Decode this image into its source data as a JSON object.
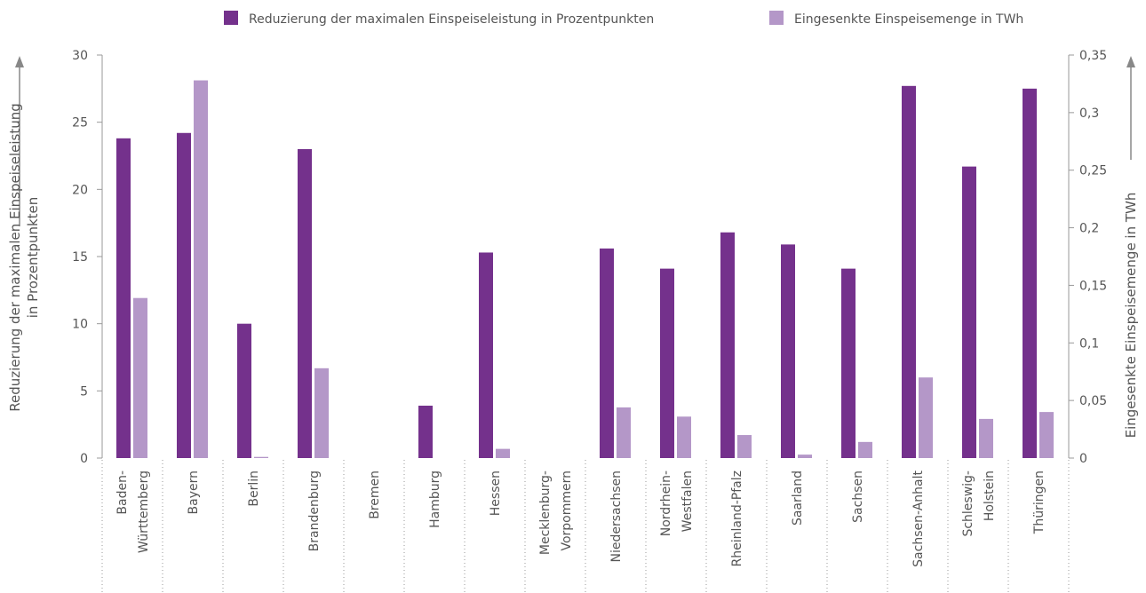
{
  "chart_data": {
    "type": "bar",
    "categories": [
      [
        "Baden-",
        "Württemberg"
      ],
      [
        "Bayern"
      ],
      [
        "Berlin"
      ],
      [
        "Brandenburg"
      ],
      [
        "Bremen"
      ],
      [
        "Hamburg"
      ],
      [
        "Hessen"
      ],
      [
        "Mecklenburg-",
        "Vorpommern"
      ],
      [
        "Niedersachsen"
      ],
      [
        "Nordrhein-",
        "Westfalen"
      ],
      [
        "Rheinland-Pfalz"
      ],
      [
        "Saarland"
      ],
      [
        "Sachsen"
      ],
      [
        "Sachsen-Anhalt"
      ],
      [
        "Schleswig-",
        "Holstein"
      ],
      [
        "Thüringen"
      ]
    ],
    "series": [
      {
        "name": "Reduzierung der maximalen Einspeiseleistung in Prozentpunkten",
        "color": "#74318c",
        "axis": "y",
        "values": [
          23.8,
          24.2,
          10,
          23,
          0,
          3.9,
          15.3,
          0,
          15.6,
          14.1,
          16.8,
          15.9,
          14.1,
          27.7,
          21.7,
          27.5
        ]
      },
      {
        "name": "Eingesenkte Einspeisemenge in TWh",
        "color": "#b497c8",
        "axis": "y2",
        "values": [
          0.139,
          0.328,
          0.001,
          0.078,
          0,
          0,
          0.008,
          0,
          0.044,
          0.036,
          0.02,
          0.003,
          0.014,
          0.07,
          0.034,
          0.04
        ]
      }
    ],
    "y_label": [
      "Reduzierung der maximalen Einspeiseleistung",
      "in Prozentpunkten"
    ],
    "y2_label": "Eingesenkte Einspeisemenge in TWh",
    "ylim": [
      0,
      30
    ],
    "yticks": [
      0,
      5,
      10,
      15,
      20,
      25,
      30
    ],
    "y2lim": [
      0,
      0.35
    ],
    "y2ticks": [
      0,
      {
        "value": 0.05,
        "label": "0,05"
      },
      {
        "value": 0.1,
        "label": "0,1"
      },
      {
        "value": 0.15,
        "label": "0,15"
      },
      {
        "value": 0.2,
        "label": "0,2"
      },
      {
        "value": 0.25,
        "label": "0,25"
      },
      {
        "value": 0.3,
        "label": "0,3"
      },
      {
        "value": 0.35,
        "label": "0,35"
      }
    ],
    "legend": "top"
  }
}
